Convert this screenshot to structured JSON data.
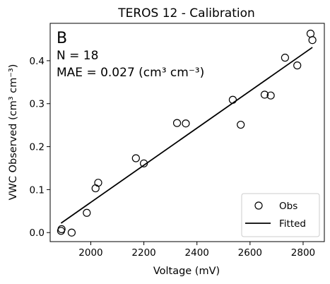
{
  "chart_data": {
    "type": "scatter",
    "title": "TEROS 12 - Calibration",
    "xlabel": "Voltage (mV)",
    "ylabel": "VWC Observed (cm³ cm⁻³)",
    "xlim": [
      1847,
      2880
    ],
    "ylim": [
      -0.021,
      0.487
    ],
    "xticks": [
      2000,
      2200,
      2400,
      2600,
      2800
    ],
    "yticks": [
      0.0,
      0.1,
      0.2,
      0.3,
      0.4
    ],
    "ytick_labels": [
      "0.0",
      "0.1",
      "0.2",
      "0.3",
      "0.4"
    ],
    "grid": false,
    "legend_position": "bottom-right",
    "annotations": {
      "panel_letter": "B",
      "n_text": "N = 18",
      "mae_text": "MAE = 0.027 (cm³ cm⁻³)"
    },
    "series": [
      {
        "name": "Obs",
        "kind": "scatter",
        "color": "#000000",
        "x": [
          1888,
          1890,
          1928,
          1985,
          2018,
          2028,
          2170,
          2200,
          2325,
          2358,
          2535,
          2565,
          2655,
          2678,
          2732,
          2778,
          2828,
          2835
        ],
        "y": [
          0.004,
          0.008,
          0.0,
          0.046,
          0.103,
          0.116,
          0.173,
          0.161,
          0.255,
          0.254,
          0.309,
          0.251,
          0.321,
          0.319,
          0.407,
          0.389,
          0.463,
          0.448
        ]
      },
      {
        "name": "Fitted",
        "kind": "line",
        "color": "#000000",
        "x": [
          1888,
          2835
        ],
        "y": [
          0.022,
          0.431
        ]
      }
    ]
  }
}
